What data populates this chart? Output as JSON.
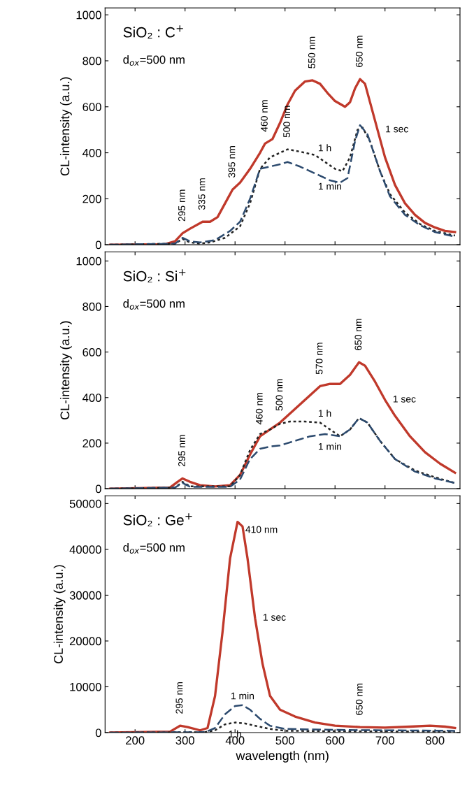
{
  "chart_data": [
    {
      "type": "line",
      "title": "SiO₂ : C$^{+}$",
      "subtitle": "d$_{ox}$=500 nm",
      "ylabel": "CL-intensity (a.u.)",
      "xlim": [
        140,
        850
      ],
      "xticks": [
        200,
        300,
        400,
        500,
        600,
        700,
        800
      ],
      "ylim": [
        0,
        1030
      ],
      "yticks": [
        0,
        200,
        400,
        600,
        800,
        1000
      ],
      "tick_labels": "y",
      "grid": false,
      "legend": false,
      "annotations": [
        {
          "text": "295 nm",
          "x": 295,
          "y": 50
        },
        {
          "text": "335 nm",
          "x": 335,
          "y": 100
        },
        {
          "text": "395 nm",
          "x": 395,
          "y": 240
        },
        {
          "text": "460 nm",
          "x": 460,
          "y": 440
        },
        {
          "text": "500 nm",
          "x": 505,
          "y": 415
        },
        {
          "text": "550 nm",
          "x": 555,
          "y": 715
        },
        {
          "text": "650 nm",
          "x": 650,
          "y": 720
        }
      ],
      "series": [
        {
          "name": "1 sec",
          "color": "#c0392b",
          "line_style": "solid",
          "x": [
            150,
            260,
            280,
            295,
            310,
            335,
            350,
            365,
            385,
            395,
            410,
            430,
            450,
            460,
            475,
            490,
            505,
            520,
            540,
            555,
            570,
            585,
            600,
            620,
            630,
            640,
            650,
            660,
            670,
            685,
            700,
            720,
            740,
            760,
            780,
            800,
            820,
            840
          ],
          "values": [
            0,
            2,
            15,
            50,
            70,
            100,
            100,
            120,
            200,
            240,
            270,
            330,
            400,
            440,
            460,
            530,
            610,
            670,
            710,
            715,
            700,
            660,
            625,
            600,
            620,
            680,
            720,
            700,
            620,
            500,
            380,
            260,
            180,
            130,
            95,
            75,
            60,
            55
          ]
        },
        {
          "name": "1 h",
          "color": "#222222",
          "line_style": "dotted",
          "x": [
            150,
            280,
            295,
            310,
            330,
            350,
            380,
            410,
            430,
            450,
            470,
            490,
            505,
            530,
            560,
            580,
            600,
            615,
            630,
            645,
            655,
            670,
            690,
            710,
            740,
            770,
            800,
            840
          ],
          "values": [
            0,
            5,
            25,
            10,
            5,
            10,
            30,
            80,
            180,
            330,
            380,
            400,
            415,
            405,
            390,
            360,
            330,
            320,
            380,
            500,
            510,
            450,
            320,
            220,
            140,
            90,
            60,
            40
          ]
        },
        {
          "name": "1 min",
          "color": "#2c4a6e",
          "line_style": "dashed",
          "x": [
            150,
            280,
            295,
            310,
            330,
            360,
            390,
            410,
            430,
            450,
            470,
            490,
            505,
            530,
            560,
            590,
            610,
            625,
            640,
            650,
            665,
            690,
            710,
            740,
            770,
            800,
            840
          ],
          "values": [
            0,
            5,
            30,
            15,
            10,
            20,
            60,
            100,
            200,
            330,
            340,
            350,
            360,
            340,
            310,
            280,
            270,
            290,
            450,
            520,
            480,
            320,
            210,
            130,
            85,
            55,
            35
          ]
        }
      ]
    },
    {
      "type": "line",
      "title": "SiO₂ : Si$^{+}$",
      "subtitle": "d$_{ox}$=500 nm",
      "ylabel": "CL-intensity (a.u.)",
      "xlim": [
        140,
        850
      ],
      "xticks": [
        200,
        300,
        400,
        500,
        600,
        700,
        800
      ],
      "ylim": [
        0,
        1040
      ],
      "yticks": [
        0,
        200,
        400,
        600,
        800,
        1000
      ],
      "tick_labels": "y",
      "grid": false,
      "legend": false,
      "annotations": [
        {
          "text": "295 nm",
          "x": 295,
          "y": 45
        },
        {
          "text": "460 nm",
          "x": 450,
          "y": 230
        },
        {
          "text": "500 nm",
          "x": 490,
          "y": 290
        },
        {
          "text": "570 nm",
          "x": 570,
          "y": 450
        },
        {
          "text": "650 nm",
          "x": 648,
          "y": 555
        }
      ],
      "series": [
        {
          "name": "1 sec",
          "color": "#c0392b",
          "line_style": "solid",
          "x": [
            150,
            270,
            285,
            295,
            310,
            330,
            360,
            390,
            410,
            430,
            450,
            470,
            490,
            510,
            530,
            550,
            570,
            590,
            610,
            630,
            648,
            660,
            680,
            700,
            720,
            750,
            780,
            810,
            840
          ],
          "values": [
            0,
            5,
            30,
            45,
            30,
            15,
            10,
            15,
            60,
            150,
            230,
            260,
            290,
            330,
            370,
            410,
            450,
            460,
            460,
            500,
            555,
            540,
            470,
            390,
            320,
            230,
            160,
            110,
            70
          ]
        },
        {
          "name": "1 h",
          "color": "#222222",
          "line_style": "dotted",
          "x": [
            150,
            280,
            295,
            310,
            390,
            410,
            430,
            450,
            470,
            490,
            510,
            540,
            570,
            590,
            610,
            630,
            648,
            665,
            690,
            720,
            760,
            800,
            840
          ],
          "values": [
            0,
            5,
            30,
            10,
            10,
            60,
            170,
            240,
            260,
            285,
            295,
            295,
            290,
            260,
            230,
            260,
            310,
            290,
            210,
            130,
            80,
            50,
            25
          ]
        },
        {
          "name": "1 min",
          "color": "#2c4a6e",
          "line_style": "dashed",
          "x": [
            150,
            280,
            295,
            310,
            390,
            410,
            430,
            450,
            470,
            490,
            520,
            550,
            580,
            610,
            630,
            648,
            665,
            690,
            720,
            760,
            800,
            840
          ],
          "values": [
            0,
            5,
            25,
            8,
            8,
            40,
            130,
            175,
            185,
            190,
            210,
            230,
            240,
            230,
            260,
            310,
            290,
            210,
            130,
            75,
            45,
            25
          ]
        }
      ]
    },
    {
      "type": "line",
      "title": "SiO₂ : Ge$^{+}$",
      "subtitle": "d$_{ox}$=500 nm",
      "xlabel": "wavelength (nm)",
      "ylabel": "CL-intensity (a.u.)",
      "xlim": [
        140,
        850
      ],
      "xticks": [
        200,
        300,
        400,
        500,
        600,
        700,
        800
      ],
      "ylim": [
        0,
        51700
      ],
      "yticks": [
        0,
        10000,
        20000,
        30000,
        40000,
        50000
      ],
      "grid": false,
      "legend": false,
      "annotations": [
        {
          "text": "295 nm",
          "x": 290,
          "y": 1500
        },
        {
          "text": "410 nm",
          "x": 405,
          "y": 46000
        },
        {
          "text": "650 nm",
          "x": 650,
          "y": 1200
        }
      ],
      "series": [
        {
          "name": "1 sec",
          "color": "#c0392b",
          "line_style": "solid",
          "x": [
            150,
            270,
            290,
            305,
            330,
            345,
            360,
            375,
            390,
            405,
            415,
            425,
            440,
            455,
            470,
            490,
            520,
            560,
            600,
            650,
            700,
            750,
            790,
            820,
            840
          ],
          "values": [
            0,
            200,
            1500,
            1200,
            500,
            1000,
            8000,
            22000,
            38000,
            46000,
            45000,
            38000,
            25000,
            15000,
            8000,
            5000,
            3500,
            2200,
            1500,
            1200,
            1100,
            1300,
            1500,
            1300,
            1000
          ]
        },
        {
          "name": "1 h",
          "color": "#222222",
          "line_style": "dotted",
          "x": [
            150,
            340,
            360,
            380,
            400,
            420,
            440,
            470,
            500,
            600,
            840
          ],
          "values": [
            0,
            100,
            500,
            1800,
            2200,
            2000,
            1500,
            800,
            400,
            300,
            200
          ]
        },
        {
          "name": "1 min",
          "color": "#2c4a6e",
          "line_style": "dashed",
          "x": [
            150,
            340,
            360,
            380,
            400,
            415,
            430,
            450,
            470,
            500,
            600,
            700,
            840
          ],
          "values": [
            0,
            100,
            1000,
            4000,
            5800,
            6000,
            5000,
            3000,
            1500,
            800,
            600,
            500,
            400
          ]
        }
      ]
    }
  ]
}
